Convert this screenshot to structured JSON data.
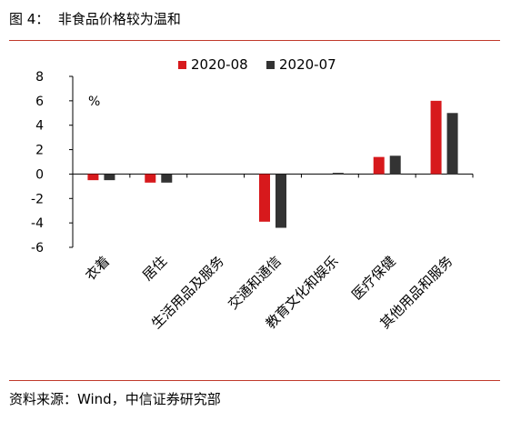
{
  "caption": "图 4：  非食品价格较为温和",
  "source": "资料来源：Wind，中信证券研究部",
  "colors": {
    "rule": "#c0392b"
  },
  "chart_data": {
    "type": "bar",
    "title": "",
    "unit_label": "%",
    "categories": [
      "衣着",
      "居住",
      "生活用品及服务",
      "交通和通信",
      "教育文化和娱乐",
      "医疗保健",
      "其他用品和服务"
    ],
    "series": [
      {
        "name": "2020-08",
        "color": "#d7191c",
        "values": [
          -0.5,
          -0.7,
          0.0,
          -3.9,
          0.0,
          1.4,
          6.0
        ]
      },
      {
        "name": "2020-07",
        "color": "#333333",
        "values": [
          -0.5,
          -0.7,
          0.0,
          -4.4,
          0.1,
          1.5,
          5.0
        ]
      }
    ],
    "ylim": [
      -6,
      8
    ],
    "yticks": [
      -6,
      -4,
      -2,
      0,
      2,
      4,
      6,
      8
    ],
    "legend": "top",
    "grid": false
  }
}
